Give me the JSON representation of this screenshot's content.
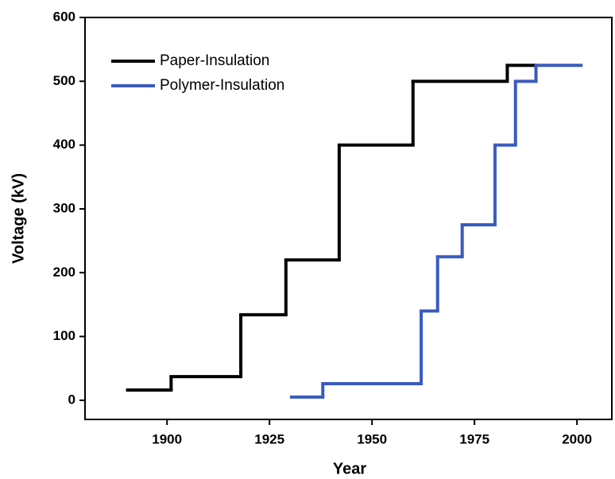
{
  "chart_data": {
    "type": "step",
    "xlabel": "Year",
    "ylabel": "Voltage (kV)",
    "xlim": [
      1880,
      2008.5
    ],
    "ylim": [
      -30,
      600
    ],
    "xticks": [
      1900,
      1925,
      1950,
      1975,
      2000
    ],
    "yticks": [
      0,
      100,
      200,
      300,
      400,
      500,
      600
    ],
    "legend": "upper left",
    "series": [
      {
        "name": "Paper-Insulation",
        "color": "#000000",
        "x": [
          1890,
          1901,
          1918,
          1929,
          1942,
          1960,
          1983,
          1990
        ],
        "values": [
          16,
          37,
          134,
          220,
          400,
          500,
          525,
          525
        ]
      },
      {
        "name": "Polymer-Insulation",
        "color": "#3a5bbf",
        "x": [
          1930,
          1938,
          1962,
          1966,
          1972,
          1980,
          1985,
          1990,
          2001
        ],
        "values": [
          5,
          26,
          140,
          225,
          275,
          400,
          500,
          525,
          525
        ]
      }
    ]
  }
}
